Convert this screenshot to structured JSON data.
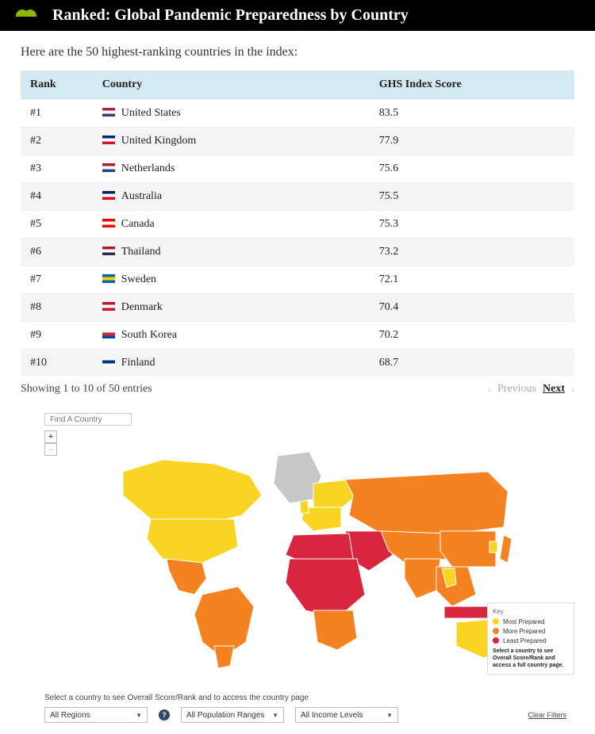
{
  "header": {
    "title": "Ranked: Global Pandemic Preparedness by Country",
    "logo_color": "#8db600"
  },
  "subtitle": "Here are the 50 highest-ranking countries in the index:",
  "table": {
    "header_bg": "#d4eaf2",
    "row_alt_bg": "#f5f5f5",
    "columns": [
      "Rank",
      "Country",
      "GHS Index Score"
    ],
    "col_widths_pct": [
      13,
      50,
      37
    ],
    "rows": [
      {
        "rank": "#1",
        "country": "United States",
        "score": "83.5",
        "flag_colors": [
          "#b22234",
          "#ffffff",
          "#3c3b6e"
        ]
      },
      {
        "rank": "#2",
        "country": "United Kingdom",
        "score": "77.9",
        "flag_colors": [
          "#00247d",
          "#ffffff",
          "#cf142b"
        ]
      },
      {
        "rank": "#3",
        "country": "Netherlands",
        "score": "75.6",
        "flag_colors": [
          "#ae1c28",
          "#ffffff",
          "#21468b"
        ]
      },
      {
        "rank": "#4",
        "country": "Australia",
        "score": "75.5",
        "flag_colors": [
          "#012169",
          "#ffffff",
          "#e4002b"
        ]
      },
      {
        "rank": "#5",
        "country": "Canada",
        "score": "75.3",
        "flag_colors": [
          "#ff0000",
          "#ffffff",
          "#ff0000"
        ]
      },
      {
        "rank": "#6",
        "country": "Thailand",
        "score": "73.2",
        "flag_colors": [
          "#a51931",
          "#ffffff",
          "#2d2a4a"
        ]
      },
      {
        "rank": "#7",
        "country": "Sweden",
        "score": "72.1",
        "flag_colors": [
          "#006aa7",
          "#fecc00",
          "#006aa7"
        ]
      },
      {
        "rank": "#8",
        "country": "Denmark",
        "score": "70.4",
        "flag_colors": [
          "#c8102e",
          "#ffffff",
          "#c8102e"
        ]
      },
      {
        "rank": "#9",
        "country": "South Korea",
        "score": "70.2",
        "flag_colors": [
          "#ffffff",
          "#cd2e3a",
          "#0047a0"
        ]
      },
      {
        "rank": "#10",
        "country": "Finland",
        "score": "68.7",
        "flag_colors": [
          "#ffffff",
          "#003580",
          "#ffffff"
        ]
      }
    ]
  },
  "pager": {
    "summary": "Showing 1 to 10 of 50 entries",
    "prev_label": "Previous",
    "next_label": "Next"
  },
  "map": {
    "find_placeholder": "Find A Country",
    "zoom_plus": "+",
    "zoom_minus": "–",
    "colors": {
      "most": "#f9d423",
      "more": "#f58220",
      "least": "#d7263d",
      "nodata": "#c7c7c7",
      "border": "#ffffff"
    },
    "legend": {
      "title": "Key",
      "items": [
        {
          "label": "Most Prepared",
          "color": "#f9d423"
        },
        {
          "label": "More Prepared",
          "color": "#f58220"
        },
        {
          "label": "Least Prepared",
          "color": "#d7263d"
        }
      ],
      "note": "Select a country to see Overall Score/Rank and access a full country page."
    },
    "footer_prompt": "Select a country to see Overall Score/Rank and to access the country page",
    "selects": {
      "region": "All Regions",
      "population": "All Population Ranges",
      "income": "All Income Levels"
    },
    "help_symbol": "?",
    "clear_filters": "Clear Filters"
  }
}
